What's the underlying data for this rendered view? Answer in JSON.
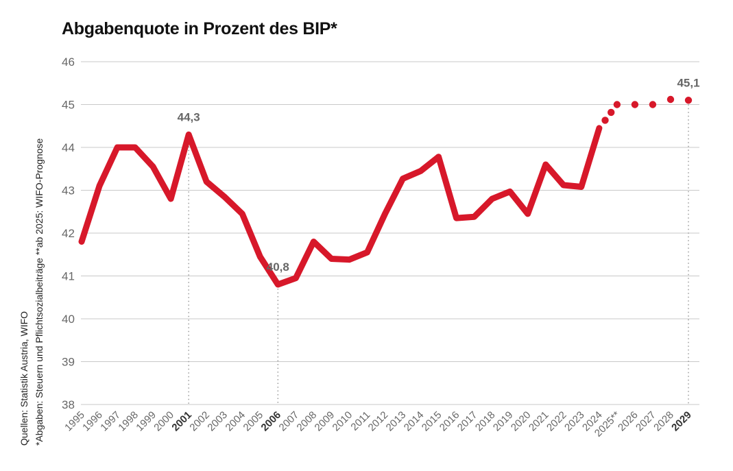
{
  "chart_data": {
    "type": "line",
    "title": "Abgabenquote in Prozent des BIP*",
    "xlabel": "",
    "ylabel": "",
    "ylim": [
      38,
      46
    ],
    "yticks": [
      "38",
      "39",
      "40",
      "41",
      "42",
      "43",
      "44",
      "45",
      "46"
    ],
    "grid": true,
    "categories": [
      "1995",
      "1996",
      "1997",
      "1998",
      "1999",
      "2000",
      "2001",
      "2002",
      "2003",
      "2004",
      "2005",
      "2006",
      "2007",
      "2008",
      "2009",
      "2010",
      "2011",
      "2012",
      "2013",
      "2014",
      "2015",
      "2016",
      "2017",
      "2018",
      "2019",
      "2020",
      "2021",
      "2022",
      "2023",
      "2024",
      "2025**",
      "2026",
      "2027",
      "2028",
      "2029"
    ],
    "highlighted_years": [
      "2001",
      "2006",
      "2029"
    ],
    "series": [
      {
        "style": "solid",
        "color": "#d7182a",
        "x": [
          "1995",
          "1996",
          "1997",
          "1998",
          "1999",
          "2000",
          "2001",
          "2002",
          "2003",
          "2004",
          "2005",
          "2006",
          "2007",
          "2008",
          "2009",
          "2010",
          "2011",
          "2012",
          "2013",
          "2014",
          "2015",
          "2016",
          "2017",
          "2018",
          "2019",
          "2020",
          "2021",
          "2022",
          "2023",
          "2024"
        ],
        "values": [
          41.8,
          43.1,
          44.0,
          44.0,
          43.55,
          42.8,
          44.3,
          43.2,
          42.85,
          42.45,
          41.45,
          40.8,
          40.95,
          41.8,
          41.4,
          41.38,
          41.55,
          42.45,
          43.27,
          43.45,
          43.78,
          42.35,
          42.38,
          42.8,
          42.97,
          42.45,
          43.6,
          43.12,
          43.08,
          44.45
        ]
      },
      {
        "style": "dotted",
        "color": "#d7182a",
        "x": [
          "2025**",
          "2026",
          "2027",
          "2028",
          "2029"
        ],
        "values": [
          45.0,
          45.0,
          45.0,
          45.12,
          45.1
        ]
      }
    ],
    "annotations": [
      {
        "year": "2001",
        "label": "44,3",
        "value": 44.3
      },
      {
        "year": "2006",
        "label": "40,8",
        "value": 40.8
      },
      {
        "year": "2029",
        "label": "45,1",
        "value": 45.1
      }
    ]
  },
  "source_lines": [
    "Quellen: Statistik Austria, WIFO",
    "*Abgaben: Steuern und Pflichtsozialbeiträge   **ab 2025: WIFO-Prognose"
  ],
  "colors": {
    "line": "#d7182a",
    "grid": "#c8c8c8",
    "tick_text": "#666666",
    "title": "#111111"
  }
}
